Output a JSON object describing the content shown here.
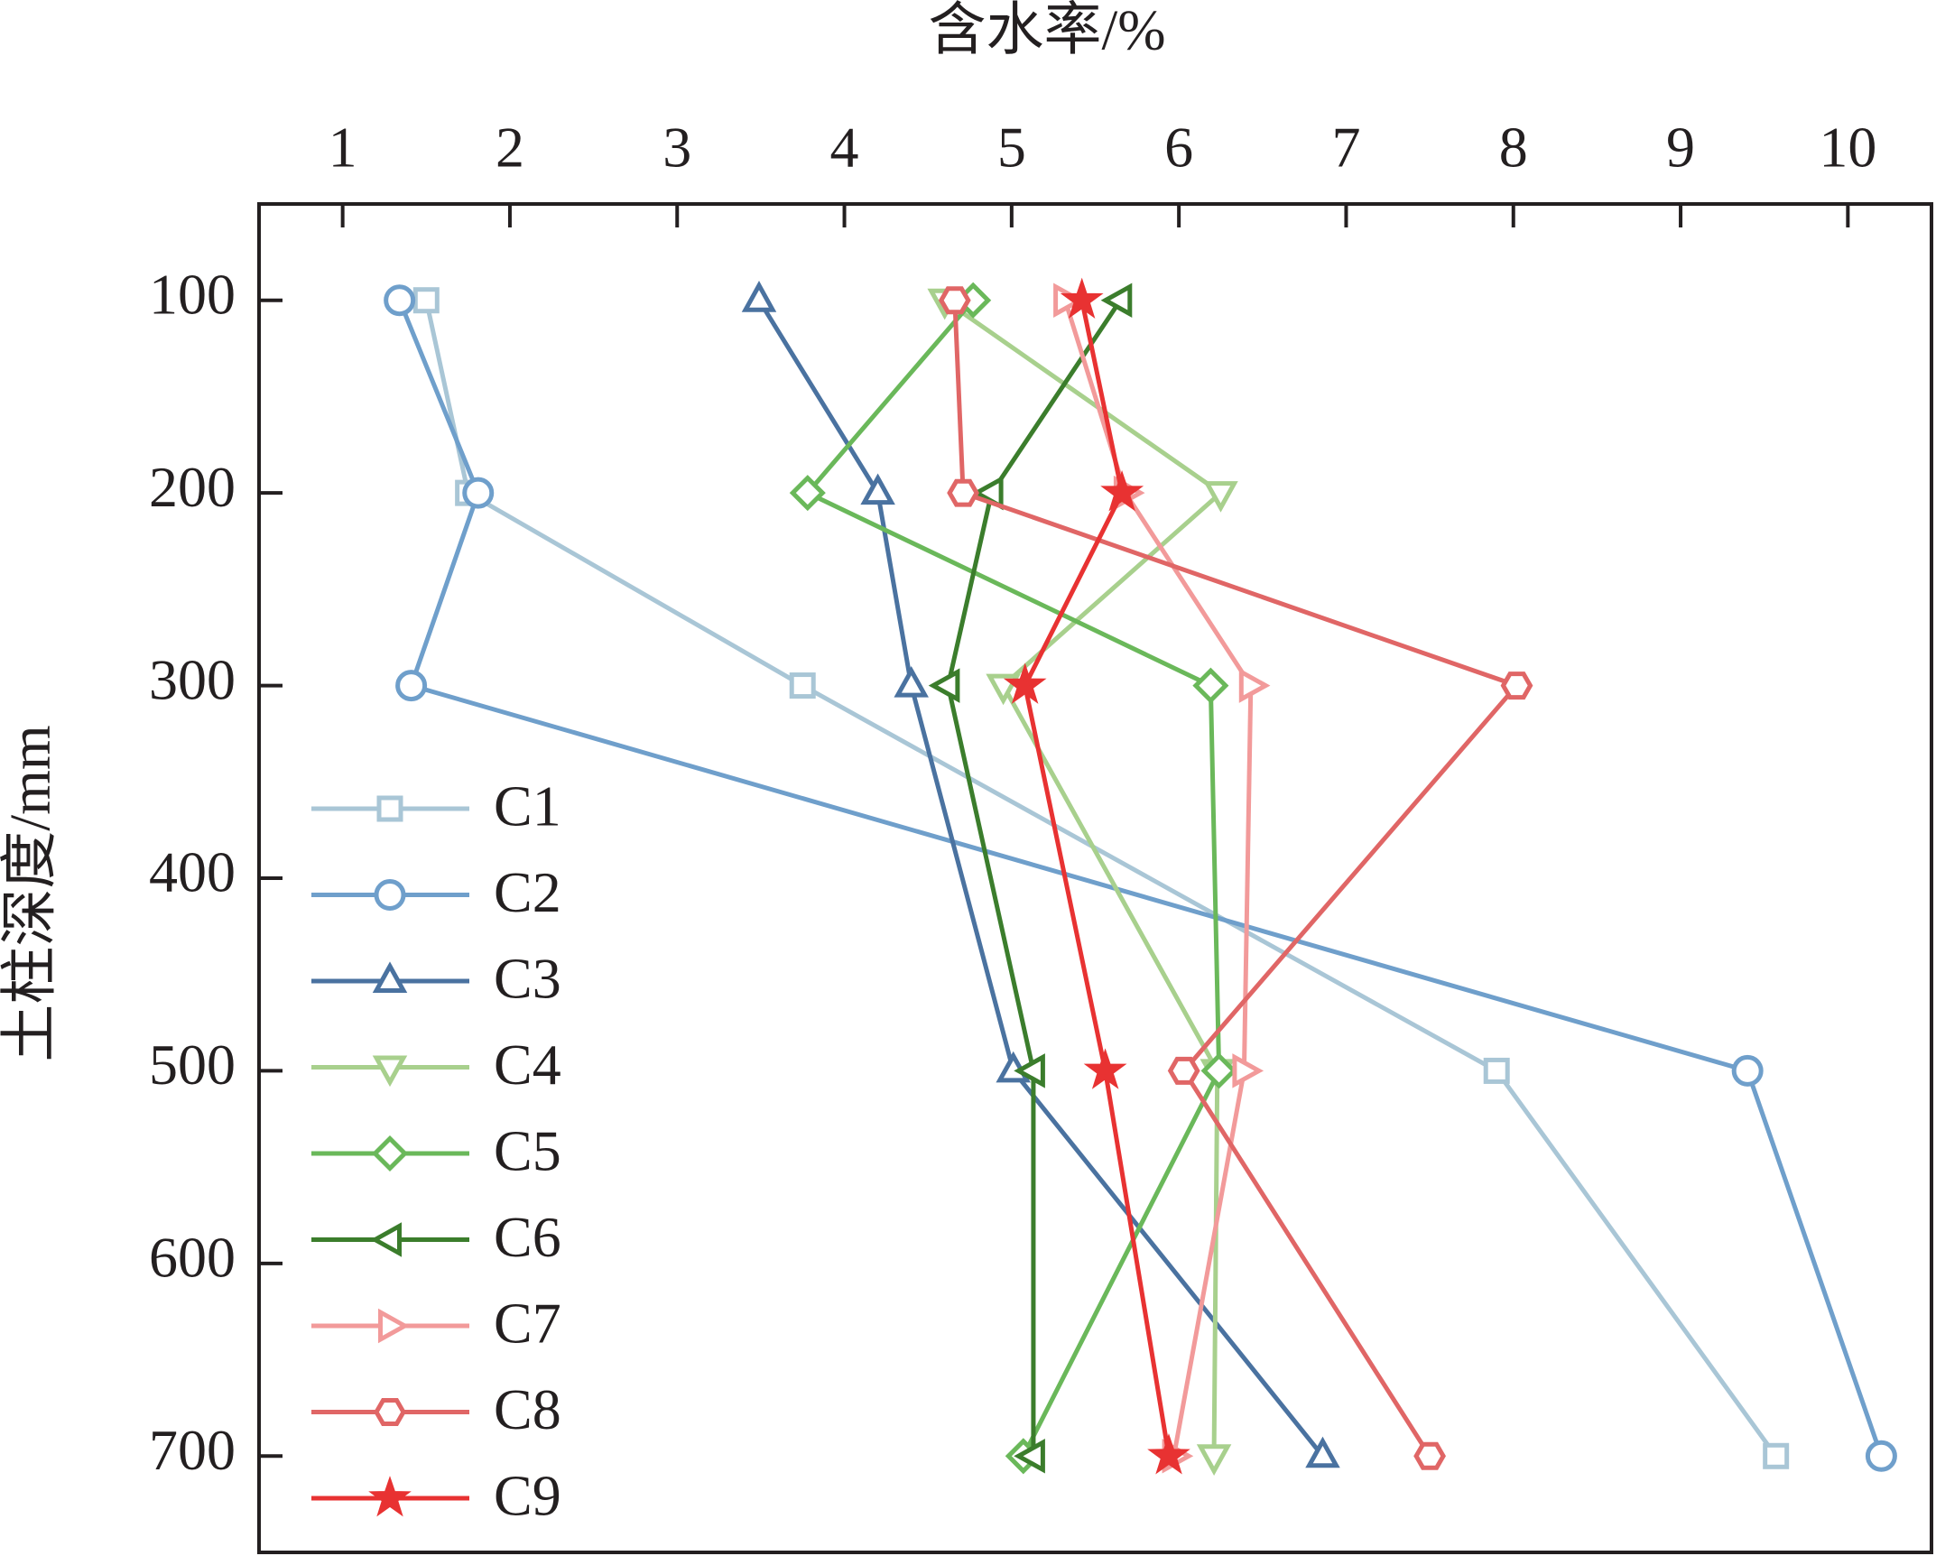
{
  "chart_data": {
    "type": "line",
    "x_label": "含水率/%",
    "y_label": "土柱深度/mm",
    "y": [
      100,
      200,
      300,
      500,
      700
    ],
    "xlim": [
      0.5,
      10.5
    ],
    "xticks": [
      1,
      2,
      3,
      4,
      5,
      6,
      7,
      8,
      9,
      10
    ],
    "ylim": [
      750,
      50
    ],
    "yticks": [
      100,
      200,
      300,
      400,
      500,
      600,
      700
    ],
    "legend": "lower left",
    "series": [
      {
        "name": "C1",
        "color": "#a9c6d6",
        "marker": "square",
        "values": [
          1.5,
          1.75,
          3.75,
          7.9,
          9.57
        ]
      },
      {
        "name": "C2",
        "color": "#6f9fcb",
        "marker": "circle",
        "values": [
          1.34,
          1.81,
          1.41,
          9.4,
          10.2
        ]
      },
      {
        "name": "C3",
        "color": "#4a72a0",
        "marker": "triangle-up",
        "values": [
          3.49,
          4.2,
          4.4,
          5.01,
          6.86
        ]
      },
      {
        "name": "C4",
        "color": "#a8d08d",
        "marker": "triangle-down",
        "values": [
          4.6,
          6.25,
          4.95,
          6.23,
          6.21
        ]
      },
      {
        "name": "C5",
        "color": "#6ab85a",
        "marker": "diamond",
        "values": [
          4.77,
          3.78,
          6.19,
          6.24,
          5.07
        ]
      },
      {
        "name": "C6",
        "color": "#3b7d2c",
        "marker": "triangle-left",
        "values": [
          5.65,
          4.88,
          4.62,
          5.13,
          5.13
        ]
      },
      {
        "name": "C7",
        "color": "#f29a9a",
        "marker": "triangle-right",
        "values": [
          5.32,
          5.68,
          6.43,
          6.39,
          5.97
        ]
      },
      {
        "name": "C8",
        "color": "#e06666",
        "marker": "hexagon",
        "values": [
          4.66,
          4.71,
          8.02,
          6.03,
          7.5
        ]
      },
      {
        "name": "C9",
        "color": "#e83232",
        "marker": "star",
        "values": [
          5.42,
          5.66,
          5.08,
          5.56,
          5.94
        ]
      }
    ]
  }
}
